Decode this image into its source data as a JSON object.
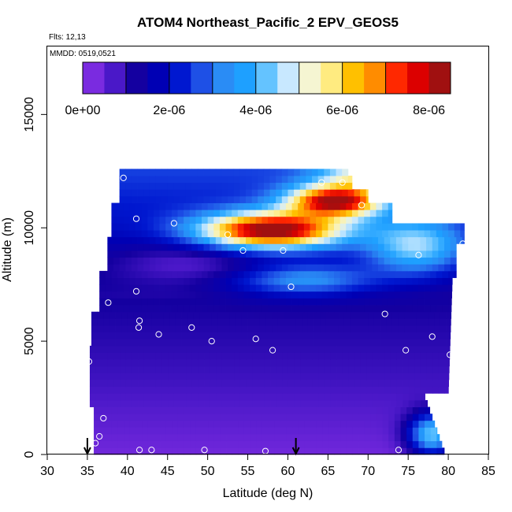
{
  "chart_data": {
    "type": "heatmap",
    "title": "ATOM4 Northeast_Pacific_2 EPV_GEOS5",
    "flights_label": "Flts: 12,13",
    "mmdd_label": "MMDD: 0519,0521",
    "xlabel": "Latitude (deg N)",
    "ylabel": "Altitude (m)",
    "xlim": [
      30,
      85
    ],
    "ylim": [
      0,
      18000
    ],
    "x_ticks": [
      "30",
      "35",
      "40",
      "45",
      "50",
      "55",
      "60",
      "65",
      "70",
      "75",
      "80",
      "85"
    ],
    "y_ticks": [
      "0",
      "5000",
      "10000",
      "15000"
    ],
    "colorbar": {
      "range": [
        0,
        8.5e-06
      ],
      "ticks": [
        "0e+00",
        "2e-06",
        "4e-06",
        "6e-06",
        "8e-06"
      ],
      "colors": [
        "#7a2be0",
        "#4a18c8",
        "#1400a0",
        "#0000b4",
        "#0018d0",
        "#1e50e6",
        "#2a8cf5",
        "#1ea0ff",
        "#64c3ff",
        "#c8e8ff",
        "#f5f5d2",
        "#ffeb80",
        "#ffc000",
        "#ff8c00",
        "#ff2800",
        "#dc0000",
        "#a01010"
      ]
    },
    "flight_markers_latitudes": [
      35,
      61
    ],
    "sample_points": [
      {
        "lat": 35.2,
        "alt": 4100
      },
      {
        "lat": 36.0,
        "alt": 500
      },
      {
        "lat": 36.5,
        "alt": 800
      },
      {
        "lat": 37.0,
        "alt": 1600
      },
      {
        "lat": 37.6,
        "alt": 6700
      },
      {
        "lat": 39.5,
        "alt": 12200
      },
      {
        "lat": 41.1,
        "alt": 10400
      },
      {
        "lat": 41.1,
        "alt": 7200
      },
      {
        "lat": 41.4,
        "alt": 5600
      },
      {
        "lat": 41.5,
        "alt": 5900
      },
      {
        "lat": 41.5,
        "alt": 200
      },
      {
        "lat": 43.0,
        "alt": 200
      },
      {
        "lat": 43.9,
        "alt": 5300
      },
      {
        "lat": 45.8,
        "alt": 10200
      },
      {
        "lat": 48.0,
        "alt": 5600
      },
      {
        "lat": 49.6,
        "alt": 200
      },
      {
        "lat": 50.5,
        "alt": 5000
      },
      {
        "lat": 52.5,
        "alt": 9700
      },
      {
        "lat": 54.4,
        "alt": 9000
      },
      {
        "lat": 56.0,
        "alt": 5100
      },
      {
        "lat": 57.2,
        "alt": 150
      },
      {
        "lat": 58.1,
        "alt": 4600
      },
      {
        "lat": 59.4,
        "alt": 9000
      },
      {
        "lat": 60.4,
        "alt": 7400
      },
      {
        "lat": 64.2,
        "alt": 12000
      },
      {
        "lat": 66.8,
        "alt": 12000
      },
      {
        "lat": 69.2,
        "alt": 11000
      },
      {
        "lat": 72.1,
        "alt": 6200
      },
      {
        "lat": 73.8,
        "alt": 200
      },
      {
        "lat": 74.7,
        "alt": 4600
      },
      {
        "lat": 76.3,
        "alt": 8800
      },
      {
        "lat": 78.0,
        "alt": 5200
      },
      {
        "lat": 80.2,
        "alt": 4400
      },
      {
        "lat": 81.8,
        "alt": 9300
      }
    ]
  }
}
